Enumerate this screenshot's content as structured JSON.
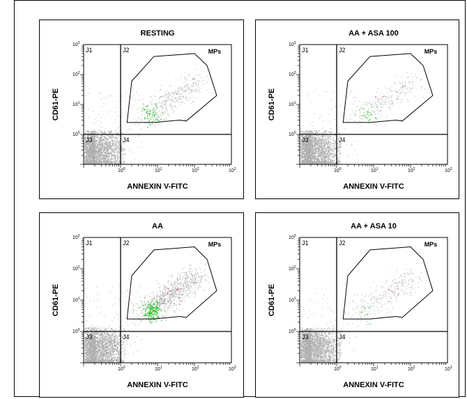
{
  "chart_data": [
    {
      "type": "scatter",
      "title": "RESTING",
      "xlabel": "ANNEXIN V-FITC",
      "ylabel": "CD61-PE",
      "x_ticks": [
        "10",
        "10",
        "10",
        "10"
      ],
      "x_tick_exps": [
        "0",
        "1",
        "2",
        "3"
      ],
      "y_ticks": [
        "10",
        "10",
        "10",
        "10"
      ],
      "y_tick_exps": [
        "0",
        "1",
        "2",
        "3"
      ],
      "xscale": "log",
      "yscale": "log",
      "xlim": [
        0.1,
        1000
      ],
      "ylim": [
        0.1,
        1000
      ],
      "quadrants": [
        "J1",
        "J2",
        "J3",
        "J4"
      ],
      "gate_label": "MPs",
      "gate": [
        [
          1.5,
          2.5
        ],
        [
          8,
          2.5
        ],
        [
          40,
          3
        ],
        [
          60,
          2.8
        ],
        [
          400,
          20
        ],
        [
          220,
          200
        ],
        [
          100,
          500
        ],
        [
          8,
          400
        ],
        [
          2,
          60
        ]
      ],
      "colors": {
        "cluster": "#b0b0b0",
        "gray": "#8c8c8c",
        "green": "#2ecc2e",
        "red": "#e0208c"
      },
      "density": {
        "cluster": 1,
        "gate": 1,
        "green": 1,
        "red": 0,
        "scatter": 1
      }
    },
    {
      "type": "scatter",
      "title": "AA + ASA 100",
      "xlabel": "ANNEXIN V-FITC",
      "ylabel": "CD61-PE",
      "x_ticks": [
        "10",
        "10",
        "10",
        "10"
      ],
      "x_tick_exps": [
        "0",
        "1",
        "2",
        "3"
      ],
      "y_ticks": [
        "10",
        "10",
        "10",
        "10"
      ],
      "y_tick_exps": [
        "0",
        "1",
        "2",
        "3"
      ],
      "xscale": "log",
      "yscale": "log",
      "xlim": [
        0.1,
        1000
      ],
      "ylim": [
        0.1,
        1000
      ],
      "quadrants": [
        "J1",
        "J2",
        "J3",
        "J4"
      ],
      "gate_label": "MPs",
      "gate": [
        [
          1.5,
          2.5
        ],
        [
          8,
          2.5
        ],
        [
          40,
          3
        ],
        [
          60,
          2.8
        ],
        [
          400,
          20
        ],
        [
          220,
          200
        ],
        [
          100,
          500
        ],
        [
          8,
          400
        ],
        [
          2,
          60
        ]
      ],
      "colors": {
        "cluster": "#b0b0b0",
        "gray": "#8c8c8c",
        "green": "#2ecc2e",
        "red": "#e0208c"
      },
      "density": {
        "cluster": 1,
        "gate": 0.6,
        "green": 0.4,
        "red": 0.6,
        "scatter": 0.8
      }
    },
    {
      "type": "scatter",
      "title": "AA",
      "xlabel": "ANNEXIN V-FITC",
      "ylabel": "CD61-PE",
      "x_ticks": [
        "10",
        "10",
        "10",
        "10"
      ],
      "x_tick_exps": [
        "0",
        "1",
        "2",
        "3"
      ],
      "y_ticks": [
        "10",
        "10",
        "10",
        "10"
      ],
      "y_tick_exps": [
        "0",
        "1",
        "2",
        "3"
      ],
      "xscale": "log",
      "yscale": "log",
      "xlim": [
        0.1,
        1000
      ],
      "ylim": [
        0.1,
        1000
      ],
      "quadrants": [
        "J1",
        "J2",
        "J3",
        "J4"
      ],
      "gate_label": "MPs",
      "gate": [
        [
          1.5,
          2.5
        ],
        [
          8,
          2.5
        ],
        [
          40,
          3
        ],
        [
          60,
          2.8
        ],
        [
          400,
          20
        ],
        [
          220,
          200
        ],
        [
          100,
          500
        ],
        [
          8,
          400
        ],
        [
          2,
          60
        ]
      ],
      "colors": {
        "cluster": "#b0b0b0",
        "gray": "#8c8c8c",
        "green": "#2ecc2e",
        "red": "#e0208c"
      },
      "density": {
        "cluster": 1,
        "gate": 2.2,
        "green": 3,
        "red": 1,
        "scatter": 1
      }
    },
    {
      "type": "scatter",
      "title": "AA + ASA 10",
      "xlabel": "ANNEXIN V-FITC",
      "ylabel": "CD61-PE",
      "x_ticks": [
        "10",
        "10",
        "10",
        "10"
      ],
      "x_tick_exps": [
        "0",
        "1",
        "2",
        "3"
      ],
      "y_ticks": [
        "10",
        "10",
        "10",
        "10"
      ],
      "y_tick_exps": [
        "0",
        "1",
        "2",
        "3"
      ],
      "xscale": "log",
      "yscale": "log",
      "xlim": [
        0.1,
        1000
      ],
      "ylim": [
        0.1,
        1000
      ],
      "quadrants": [
        "J1",
        "J2",
        "J3",
        "J4"
      ],
      "gate_label": "MPs",
      "gate": [
        [
          1.5,
          2.5
        ],
        [
          8,
          2.5
        ],
        [
          40,
          3
        ],
        [
          60,
          2.8
        ],
        [
          400,
          20
        ],
        [
          220,
          200
        ],
        [
          100,
          500
        ],
        [
          8,
          400
        ],
        [
          2,
          60
        ]
      ],
      "colors": {
        "cluster": "#b0b0b0",
        "gray": "#8c8c8c",
        "green": "#2ecc2e",
        "red": "#e0208c"
      },
      "density": {
        "cluster": 1,
        "gate": 0.7,
        "green": 0.1,
        "red": 0.2,
        "scatter": 0.7
      }
    }
  ]
}
